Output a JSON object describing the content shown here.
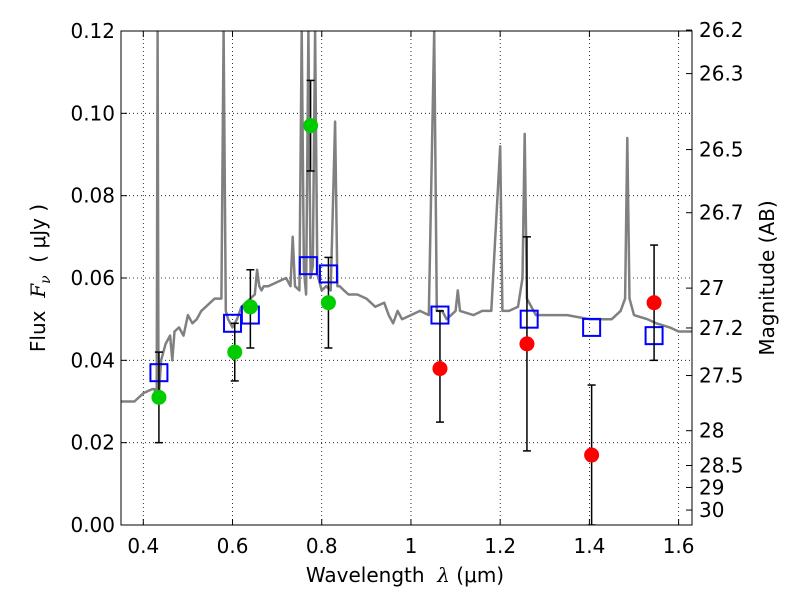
{
  "chart_data": {
    "type": "scatter",
    "xlabel": {
      "prefix": "Wavelength  ",
      "symbol": "λ",
      "unit": " (μm)"
    },
    "ylabel": {
      "prefix": "Flux  ",
      "symbol": "F",
      "subscript": "ν",
      "unit": "  ( μJy )"
    },
    "y2label": "Magnitude (AB)",
    "xlim": [
      0.35,
      1.63
    ],
    "ylim": [
      0.0,
      0.12
    ],
    "grid": true,
    "x_ticks": [
      0.4,
      0.6,
      0.8,
      1.0,
      1.2,
      1.4,
      1.6
    ],
    "x_tick_labels": [
      "0.4",
      "0.6",
      "0.8",
      "1",
      "1.2",
      "1.4",
      "1.6"
    ],
    "y_ticks": [
      0.0,
      0.02,
      0.04,
      0.06,
      0.08,
      0.1,
      0.12
    ],
    "y_tick_labels": [
      "0.00",
      "0.02",
      "0.04",
      "0.06",
      "0.08",
      "0.10",
      "0.12"
    ],
    "magnitude_ticks": [
      "26.2",
      "26.3",
      "26.5",
      "26.7",
      "27",
      "27.2",
      "27.5",
      "28",
      "28.5",
      "29",
      "30"
    ],
    "series": [
      {
        "kind": "line",
        "color": "#808080",
        "points": [
          [
            0.35,
            0.03
          ],
          [
            0.38,
            0.03
          ],
          [
            0.4,
            0.032
          ],
          [
            0.42,
            0.033
          ],
          [
            0.425,
            0.033
          ],
          [
            0.43,
            0.03
          ],
          [
            0.432,
            0.12
          ],
          [
            0.434,
            0.03
          ],
          [
            0.44,
            0.04
          ],
          [
            0.45,
            0.044
          ],
          [
            0.46,
            0.046
          ],
          [
            0.465,
            0.04
          ],
          [
            0.47,
            0.047
          ],
          [
            0.48,
            0.048
          ],
          [
            0.49,
            0.046
          ],
          [
            0.5,
            0.051
          ],
          [
            0.51,
            0.049
          ],
          [
            0.52,
            0.05
          ],
          [
            0.53,
            0.052
          ],
          [
            0.54,
            0.053
          ],
          [
            0.55,
            0.054
          ],
          [
            0.56,
            0.055
          ],
          [
            0.575,
            0.055
          ],
          [
            0.58,
            0.12
          ],
          [
            0.585,
            0.052
          ],
          [
            0.59,
            0.05
          ],
          [
            0.6,
            0.048
          ],
          [
            0.61,
            0.05
          ],
          [
            0.62,
            0.053
          ],
          [
            0.63,
            0.054
          ],
          [
            0.64,
            0.055
          ],
          [
            0.65,
            0.056
          ],
          [
            0.655,
            0.062
          ],
          [
            0.66,
            0.058
          ],
          [
            0.665,
            0.057
          ],
          [
            0.67,
            0.058
          ],
          [
            0.68,
            0.058
          ],
          [
            0.7,
            0.059
          ],
          [
            0.72,
            0.06
          ],
          [
            0.73,
            0.058
          ],
          [
            0.735,
            0.07
          ],
          [
            0.74,
            0.058
          ],
          [
            0.75,
            0.057
          ],
          [
            0.755,
            0.12
          ],
          [
            0.76,
            0.062
          ],
          [
            0.765,
            0.056
          ],
          [
            0.77,
            0.12
          ],
          [
            0.775,
            0.06
          ],
          [
            0.78,
            0.063
          ],
          [
            0.785,
            0.12
          ],
          [
            0.79,
            0.061
          ],
          [
            0.8,
            0.057
          ],
          [
            0.81,
            0.058
          ],
          [
            0.82,
            0.057
          ],
          [
            0.83,
            0.098
          ],
          [
            0.835,
            0.058
          ],
          [
            0.84,
            0.058
          ],
          [
            0.85,
            0.057
          ],
          [
            0.86,
            0.056
          ],
          [
            0.87,
            0.056
          ],
          [
            0.88,
            0.056
          ],
          [
            0.9,
            0.055
          ],
          [
            0.92,
            0.053
          ],
          [
            0.94,
            0.054
          ],
          [
            0.95,
            0.051
          ],
          [
            0.96,
            0.049
          ],
          [
            0.97,
            0.052
          ],
          [
            0.98,
            0.05
          ],
          [
            1.0,
            0.051
          ],
          [
            1.02,
            0.052
          ],
          [
            1.04,
            0.051
          ],
          [
            1.052,
            0.12
          ],
          [
            1.058,
            0.052
          ],
          [
            1.07,
            0.052
          ],
          [
            1.08,
            0.05
          ],
          [
            1.09,
            0.051
          ],
          [
            1.1,
            0.052
          ],
          [
            1.105,
            0.057
          ],
          [
            1.11,
            0.052
          ],
          [
            1.14,
            0.051
          ],
          [
            1.16,
            0.052
          ],
          [
            1.18,
            0.052
          ],
          [
            1.2,
            0.092
          ],
          [
            1.205,
            0.052
          ],
          [
            1.22,
            0.052
          ],
          [
            1.24,
            0.053
          ],
          [
            1.25,
            0.06
          ],
          [
            1.255,
            0.095
          ],
          [
            1.26,
            0.055
          ],
          [
            1.28,
            0.051
          ],
          [
            1.3,
            0.051
          ],
          [
            1.35,
            0.051
          ],
          [
            1.4,
            0.05
          ],
          [
            1.45,
            0.05
          ],
          [
            1.47,
            0.052
          ],
          [
            1.48,
            0.055
          ],
          [
            1.485,
            0.094
          ],
          [
            1.49,
            0.055
          ],
          [
            1.5,
            0.051
          ],
          [
            1.53,
            0.05
          ],
          [
            1.55,
            0.049
          ],
          [
            1.58,
            0.048
          ],
          [
            1.6,
            0.047
          ],
          [
            1.63,
            0.047
          ]
        ]
      },
      {
        "kind": "open-square",
        "color": "#0000ff",
        "points": [
          [
            0.435,
            0.037
          ],
          [
            0.6,
            0.049
          ],
          [
            0.64,
            0.051
          ],
          [
            0.77,
            0.063
          ],
          [
            0.815,
            0.061
          ],
          [
            1.065,
            0.051
          ],
          [
            1.265,
            0.05
          ],
          [
            1.405,
            0.048
          ],
          [
            1.545,
            0.046
          ]
        ]
      },
      {
        "kind": "filled-circle",
        "color": "#00cc00",
        "points": [
          [
            0.435,
            0.031,
            0.011,
            0.011
          ],
          [
            0.605,
            0.042,
            0.007,
            0.007
          ],
          [
            0.64,
            0.053,
            0.01,
            0.009
          ],
          [
            0.775,
            0.097,
            0.011,
            0.011
          ],
          [
            0.815,
            0.054,
            0.011,
            0.011
          ]
        ]
      },
      {
        "kind": "filled-circle",
        "color": "#ff0000",
        "points": [
          [
            1.065,
            0.038,
            0.013,
            0.014
          ],
          [
            1.26,
            0.044,
            0.026,
            0.026
          ],
          [
            1.405,
            0.017,
            0.021,
            0.017
          ],
          [
            1.545,
            0.054,
            0.014,
            0.014
          ]
        ]
      }
    ]
  }
}
